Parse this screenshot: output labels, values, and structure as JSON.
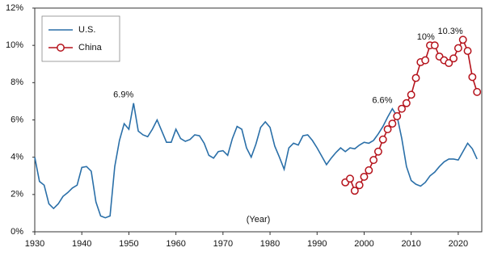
{
  "chart_data": {
    "type": "line",
    "xlabel": "(Year)",
    "xlim": [
      1930,
      2025
    ],
    "xticks": [
      1930,
      1940,
      1950,
      1960,
      1970,
      1980,
      1990,
      2000,
      2010,
      2020
    ],
    "ylim": [
      0,
      12
    ],
    "yticks": [
      {
        "value": 0,
        "label": "0%"
      },
      {
        "value": 2,
        "label": "2%"
      },
      {
        "value": 4,
        "label": "4%"
      },
      {
        "value": 6,
        "label": "6%"
      },
      {
        "value": 8,
        "label": "8%"
      },
      {
        "value": 10,
        "label": "10%"
      },
      {
        "value": 12,
        "label": "12%"
      }
    ],
    "legend": "top-left",
    "series": [
      {
        "name": "U.S.",
        "color": "#2a6fa8",
        "marker": false,
        "x": [
          1930,
          1931,
          1932,
          1933,
          1934,
          1935,
          1936,
          1937,
          1938,
          1939,
          1940,
          1941,
          1942,
          1943,
          1944,
          1945,
          1946,
          1947,
          1948,
          1949,
          1950,
          1951,
          1952,
          1953,
          1954,
          1955,
          1956,
          1957,
          1958,
          1959,
          1960,
          1961,
          1962,
          1963,
          1964,
          1965,
          1966,
          1967,
          1968,
          1969,
          1970,
          1971,
          1972,
          1973,
          1974,
          1975,
          1976,
          1977,
          1978,
          1979,
          1980,
          1981,
          1982,
          1983,
          1984,
          1985,
          1986,
          1987,
          1988,
          1989,
          1990,
          1991,
          1992,
          1993,
          1994,
          1995,
          1996,
          1997,
          1998,
          1999,
          2000,
          2001,
          2002,
          2003,
          2004,
          2005,
          2006,
          2007,
          2008,
          2009,
          2010,
          2011,
          2012,
          2013,
          2014,
          2015,
          2016,
          2017,
          2018,
          2019,
          2020,
          2021,
          2022,
          2023,
          2024
        ],
        "values": [
          4.0,
          2.7,
          2.5,
          1.5,
          1.25,
          1.5,
          1.9,
          2.1,
          2.35,
          2.5,
          3.45,
          3.5,
          3.25,
          1.6,
          0.85,
          0.75,
          0.85,
          3.5,
          4.9,
          5.8,
          5.5,
          6.9,
          5.4,
          5.2,
          5.1,
          5.5,
          6.0,
          5.4,
          4.8,
          4.8,
          5.5,
          5.0,
          4.85,
          4.95,
          5.2,
          5.15,
          4.75,
          4.1,
          3.95,
          4.3,
          4.35,
          4.1,
          5.0,
          5.65,
          5.5,
          4.5,
          4.0,
          4.7,
          5.6,
          5.9,
          5.6,
          4.6,
          4.0,
          3.35,
          4.5,
          4.75,
          4.65,
          5.15,
          5.2,
          4.9,
          4.5,
          4.05,
          3.6,
          3.95,
          4.25,
          4.5,
          4.3,
          4.5,
          4.45,
          4.65,
          4.8,
          4.75,
          4.9,
          5.25,
          5.65,
          6.15,
          6.6,
          6.2,
          5.0,
          3.5,
          2.75,
          2.55,
          2.45,
          2.65,
          3.0,
          3.2,
          3.5,
          3.75,
          3.9,
          3.9,
          3.85,
          4.3,
          4.75,
          4.45,
          3.9
        ]
      },
      {
        "name": "China",
        "color": "#b5121b",
        "marker": true,
        "x": [
          1996,
          1997,
          1998,
          1999,
          2000,
          2001,
          2002,
          2003,
          2004,
          2005,
          2006,
          2007,
          2008,
          2009,
          2010,
          2011,
          2012,
          2013,
          2014,
          2015,
          2016,
          2017,
          2018,
          2019,
          2020,
          2021,
          2022,
          2023,
          2024
        ],
        "values": [
          2.65,
          2.85,
          2.2,
          2.5,
          2.95,
          3.3,
          3.85,
          4.3,
          4.95,
          5.5,
          5.8,
          6.2,
          6.6,
          6.9,
          7.35,
          8.25,
          9.1,
          9.2,
          10.0,
          10.0,
          9.4,
          9.2,
          9.05,
          9.3,
          9.85,
          10.3,
          9.7,
          8.3,
          7.5
        ]
      }
    ],
    "annotations": [
      {
        "text": "6.9%",
        "x": 1951,
        "y": 6.9
      },
      {
        "text": "6.6%",
        "x": 2006,
        "y": 6.6
      },
      {
        "text": "10%",
        "x": 2015,
        "y": 10.0
      },
      {
        "text": "10.3%",
        "x": 2021,
        "y": 10.3
      }
    ]
  }
}
